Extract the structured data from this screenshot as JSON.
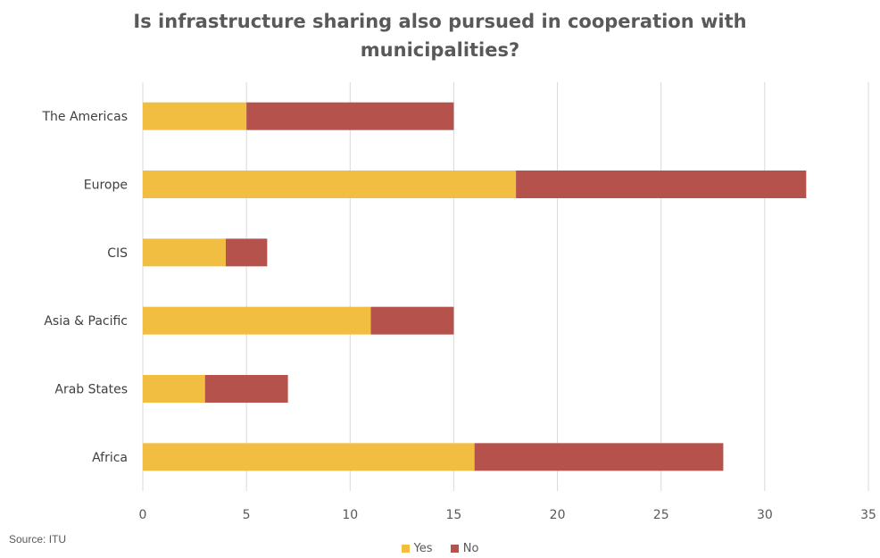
{
  "chart_data": {
    "type": "bar",
    "orientation": "horizontal",
    "stacked": true,
    "title_lines": [
      "Is infrastructure sharing also pursued in cooperation with",
      "municipalities?"
    ],
    "categories": [
      "The Americas",
      "Europe",
      "CIS",
      "Asia & Pacific",
      "Arab States",
      "Africa"
    ],
    "series": [
      {
        "name": "Yes",
        "color": "#F2BE42",
        "values": [
          5,
          18,
          4,
          11,
          3,
          16
        ]
      },
      {
        "name": "No",
        "color": "#B5524B",
        "values": [
          10,
          14,
          2,
          4,
          4,
          12
        ]
      }
    ],
    "xlim": [
      0,
      35
    ],
    "xticks": [
      0,
      5,
      10,
      15,
      20,
      25,
      30,
      35
    ],
    "grid": "vertical",
    "legend_position": "bottom"
  },
  "source": "Source: ITU"
}
